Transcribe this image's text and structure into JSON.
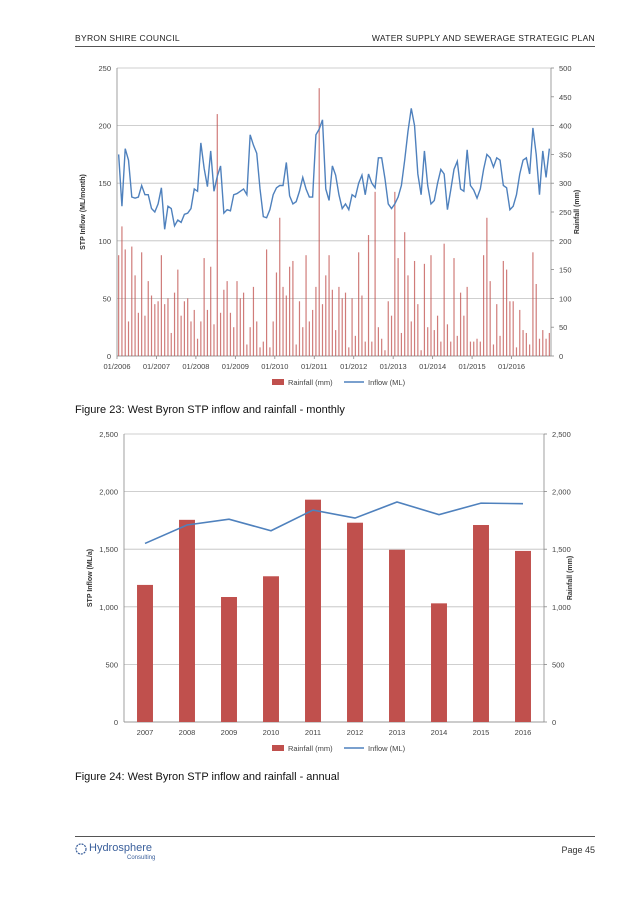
{
  "header": {
    "left": "BYRON SHIRE COUNCIL",
    "right": "WATER SUPPLY AND SEWERAGE STRATEGIC PLAN"
  },
  "captions": {
    "fig23": "Figure 23: West Byron STP inflow and rainfall - monthly",
    "fig24": "Figure 24: West Byron STP inflow and rainfall - annual"
  },
  "footer": {
    "logo_name": "Hydrosphere",
    "logo_sub": "Consulting",
    "page": "Page 45"
  },
  "colors": {
    "rain": "#c0504d",
    "inflow": "#4f81bd",
    "grid": "#bfbfbf"
  },
  "chart_data": [
    {
      "type": "bar+line",
      "title": "",
      "ylabel": "STP Inflow (ML/month)",
      "y2label": "Rainfall (mm)",
      "ylim": [
        0,
        250
      ],
      "y2lim": [
        0,
        500
      ],
      "yticks": [
        0,
        50,
        100,
        150,
        200,
        250
      ],
      "y2ticks": [
        0,
        50,
        100,
        150,
        200,
        250,
        300,
        350,
        400,
        450,
        500
      ],
      "xticks": [
        "01/2006",
        "01/2007",
        "01/2008",
        "01/2009",
        "01/2010",
        "01/2011",
        "01/2012",
        "01/2013",
        "01/2014",
        "01/2015",
        "01/2016"
      ],
      "legend": [
        "Rainfall (mm)",
        "Inflow (ML)"
      ],
      "months": 132,
      "series": [
        {
          "name": "Rainfall (mm)",
          "kind": "bar",
          "axis": "right",
          "values": [
            175,
            225,
            185,
            60,
            190,
            140,
            75,
            180,
            70,
            130,
            105,
            90,
            95,
            175,
            90,
            100,
            40,
            110,
            150,
            70,
            95,
            100,
            60,
            80,
            30,
            60,
            170,
            80,
            155,
            55,
            420,
            75,
            115,
            130,
            75,
            50,
            130,
            100,
            110,
            20,
            50,
            120,
            60,
            15,
            25,
            185,
            15,
            60,
            145,
            240,
            120,
            105,
            155,
            165,
            20,
            95,
            50,
            175,
            60,
            80,
            120,
            465,
            90,
            140,
            175,
            115,
            45,
            120,
            100,
            110,
            15,
            100,
            35,
            180,
            105,
            25,
            210,
            25,
            285,
            50,
            30,
            10,
            95,
            70,
            285,
            170,
            40,
            215,
            140,
            60,
            165,
            90,
            10,
            160,
            50,
            175,
            45,
            70,
            25,
            195,
            55,
            25,
            170,
            35,
            110,
            70,
            120,
            25,
            25,
            30,
            25,
            175,
            240,
            130,
            20,
            90,
            35,
            165,
            150,
            95,
            95,
            15,
            80,
            45,
            40,
            20,
            180,
            125,
            30,
            45,
            30,
            40
          ]
        },
        {
          "name": "Inflow (ML)",
          "kind": "line",
          "axis": "left",
          "values": [
            175,
            130,
            180,
            170,
            138,
            137,
            138,
            148,
            140,
            140,
            128,
            125,
            132,
            146,
            110,
            130,
            128,
            113,
            118,
            116,
            123,
            124,
            128,
            145,
            143,
            185,
            163,
            147,
            178,
            143,
            156,
            165,
            124,
            127,
            126,
            140,
            141,
            143,
            145,
            140,
            192,
            183,
            176,
            145,
            121,
            120,
            127,
            140,
            146,
            148,
            148,
            168,
            139,
            132,
            134,
            143,
            155,
            145,
            138,
            138,
            192,
            197,
            205,
            145,
            135,
            165,
            157,
            140,
            128,
            132,
            127,
            140,
            138,
            150,
            157,
            140,
            158,
            150,
            146,
            172,
            172,
            154,
            132,
            128,
            132,
            138,
            148,
            170,
            195,
            215,
            200,
            158,
            140,
            178,
            148,
            132,
            135,
            150,
            162,
            158,
            127,
            144,
            162,
            169,
            145,
            143,
            179,
            148,
            144,
            137,
            145,
            162,
            175,
            172,
            164,
            172,
            170,
            148,
            146,
            127,
            130,
            140,
            158,
            170,
            172,
            158,
            198,
            175,
            140,
            178,
            155,
            180
          ]
        }
      ]
    },
    {
      "type": "bar+line",
      "title": "",
      "ylabel": "STP Inflow (ML/a)",
      "y2label": "Rainfall (mm)",
      "categories": [
        "2007",
        "2008",
        "2009",
        "2010",
        "2011",
        "2012",
        "2013",
        "2014",
        "2015",
        "2016"
      ],
      "ylim": [
        0,
        2500
      ],
      "y2lim": [
        0,
        2500
      ],
      "yticks": [
        "0",
        "500",
        "1,000",
        "1,500",
        "2,000",
        "2,500"
      ],
      "y2ticks": [
        "0",
        "500",
        "1,000",
        "1,500",
        "2,000",
        "2,500"
      ],
      "legend": [
        "Rainfall (mm)",
        "Inflow (ML)"
      ],
      "series": [
        {
          "name": "Rainfall (mm)",
          "kind": "bar",
          "axis": "right",
          "values": [
            1190,
            1755,
            1085,
            1265,
            1930,
            1730,
            1495,
            1030,
            1710,
            1485
          ]
        },
        {
          "name": "Inflow (ML)",
          "kind": "line",
          "axis": "left",
          "values": [
            1550,
            1710,
            1760,
            1660,
            1840,
            1770,
            1910,
            1800,
            1900,
            1895
          ]
        }
      ]
    }
  ]
}
